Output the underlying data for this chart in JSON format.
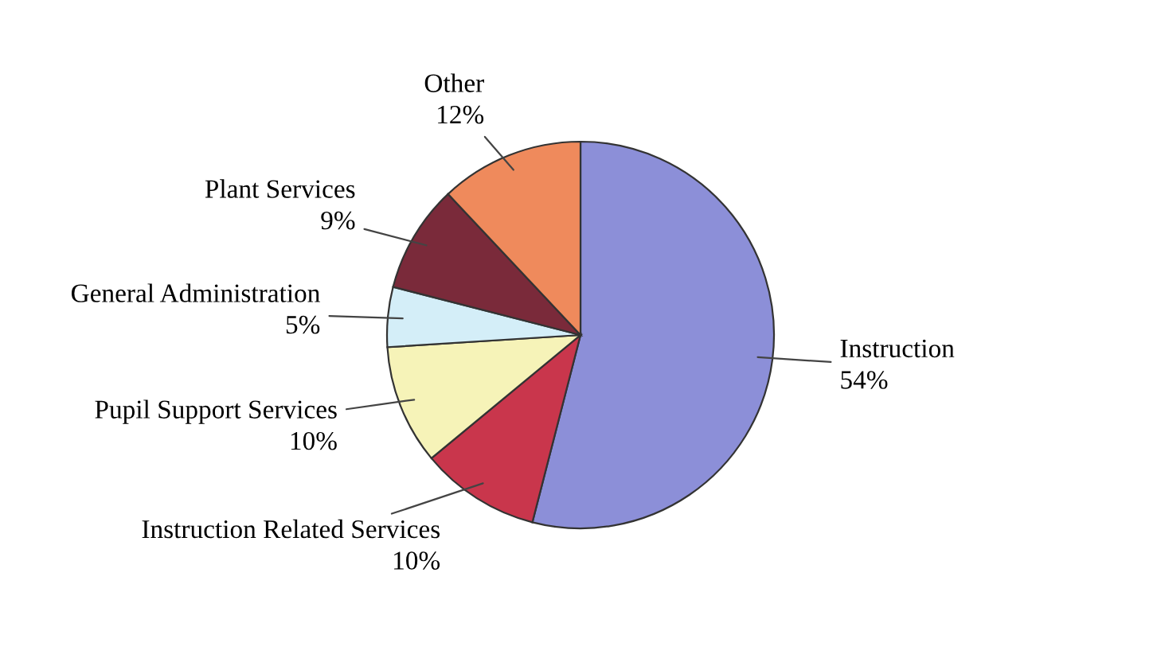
{
  "chart_data": {
    "type": "pie",
    "categories": [
      "Instruction",
      "Instruction Related Services",
      "Pupil Support Services",
      "General Administration",
      "Plant Services",
      "Other"
    ],
    "values": [
      54,
      10,
      10,
      5,
      9,
      12
    ],
    "value_labels": [
      "54%",
      "10%",
      "10%",
      "5%",
      "9%",
      "12%"
    ],
    "colors": [
      "#8c8fd8",
      "#c9364c",
      "#f6f3b8",
      "#d4eef8",
      "#7a2a3a",
      "#ef8a5c"
    ]
  }
}
